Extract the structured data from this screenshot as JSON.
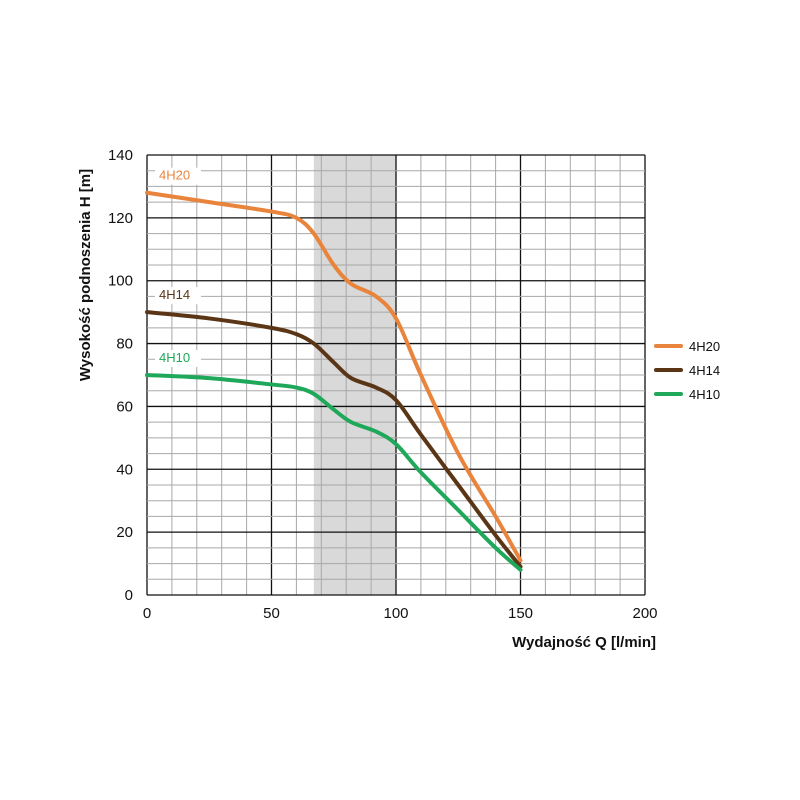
{
  "chart_data": {
    "type": "line",
    "title": "",
    "xlabel": "Wydajność Q [l/min]",
    "ylabel": "Wysokość podnoszenia H [m]",
    "xlim": [
      0,
      200
    ],
    "ylim": [
      0,
      140
    ],
    "x_ticks": [
      0,
      50,
      100,
      150,
      200
    ],
    "y_ticks": [
      0,
      20,
      40,
      60,
      80,
      100,
      120,
      140
    ],
    "grid": true,
    "highlight_band": {
      "x": [
        67,
        100
      ],
      "color": "#d9d9d9"
    },
    "legend_position": "right",
    "series": [
      {
        "name": "4H20",
        "color": "#e9843c",
        "label_color": "#e9843c",
        "x": [
          0,
          25,
          50,
          60,
          67,
          75,
          82,
          92,
          100,
          110,
          125,
          140,
          150
        ],
        "y": [
          128,
          125,
          122,
          120,
          115,
          105,
          99,
          95,
          88,
          70,
          45,
          25,
          11
        ]
      },
      {
        "name": "4H14",
        "color": "#5b3616",
        "label_color": "#5b3616",
        "x": [
          0,
          25,
          50,
          60,
          67,
          75,
          82,
          92,
          100,
          110,
          125,
          140,
          150
        ],
        "y": [
          90,
          88,
          85,
          83,
          80,
          74,
          69,
          66,
          62,
          51,
          35,
          19,
          9
        ]
      },
      {
        "name": "4H10",
        "color": "#1fa85a",
        "label_color": "#1fa85a",
        "x": [
          0,
          25,
          50,
          60,
          67,
          75,
          82,
          92,
          100,
          110,
          125,
          140,
          150
        ],
        "y": [
          70,
          69,
          67,
          66,
          64,
          59,
          55,
          52,
          48,
          39,
          27,
          15,
          8
        ]
      }
    ]
  }
}
